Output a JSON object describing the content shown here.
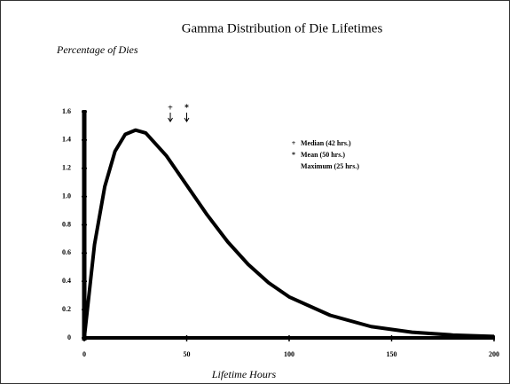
{
  "chart_data": {
    "type": "line",
    "title": "Gamma Distribution of Die Lifetimes",
    "y_label": "Percentage of Dies",
    "x_label": "Lifetime Hours",
    "x": [
      0,
      5,
      10,
      15,
      20,
      25,
      30,
      40,
      50,
      60,
      70,
      80,
      90,
      100,
      120,
      140,
      160,
      180,
      200
    ],
    "series": [
      {
        "color": "#000000",
        "values": [
          0,
          0.66,
          1.07,
          1.32,
          1.44,
          1.47,
          1.45,
          1.29,
          1.08,
          0.87,
          0.68,
          0.52,
          0.39,
          0.29,
          0.16,
          0.08,
          0.04,
          0.02,
          0.01
        ]
      }
    ],
    "xlim": [
      0,
      200
    ],
    "xticks": [
      0,
      50,
      100,
      150,
      200
    ],
    "ylim": [
      0,
      1.6
    ],
    "yticks": [
      0,
      0.2,
      0.4,
      0.6,
      0.8,
      {
        "value": 1,
        "label": "1.0"
      },
      1.2,
      1.4,
      1.6
    ],
    "markers": [
      {
        "symbol": "+",
        "x": 42
      },
      {
        "symbol": "*",
        "x": 50
      }
    ],
    "legend": [
      {
        "symbol": "+",
        "label": "Median (42 hrs.)"
      },
      {
        "symbol": "*",
        "label": "Mean  (50 hrs.)"
      },
      {
        "label": "Maximum (25 hrs.)"
      }
    ]
  }
}
